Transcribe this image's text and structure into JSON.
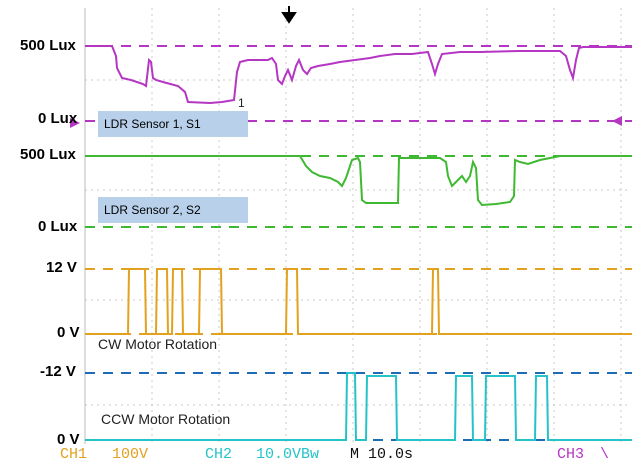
{
  "scope": {
    "colors": {
      "ch1": "#b636c4",
      "ch2": "#3fb931",
      "ch3": "#e2a11f",
      "ch4": "#1f6cb6",
      "ch4_trace": "#25c3c8",
      "grid": "#c8c8c8",
      "trigger": "#000000"
    },
    "trigger_icon": "trigger-arrow-down",
    "channels": [
      {
        "id": "ldr1",
        "top_label": "500 Lux",
        "bottom_label": "0 Lux",
        "marker": "1",
        "tag": "LDR Sensor 1, S1"
      },
      {
        "id": "ldr2",
        "top_label": "500 Lux",
        "bottom_label": "0 Lux",
        "tag": "LDR Sensor 2, S2"
      },
      {
        "id": "cw",
        "top_label": "12 V",
        "bottom_label": "0 V",
        "caption": "CW Motor Rotation"
      },
      {
        "id": "ccw",
        "top_label": "-12 V",
        "bottom_label": "0 V",
        "caption": "CCW Motor Rotation"
      }
    ],
    "status": {
      "ch1": "CH1",
      "ch1_scale": "100V",
      "ch2": "CH2",
      "ch2_scale": "10.0VBw",
      "timebase": "M 10.0s",
      "ch3": "CH3",
      "ch3_slope": "\\"
    }
  }
}
